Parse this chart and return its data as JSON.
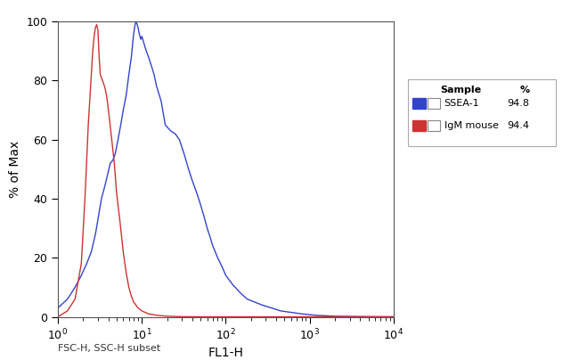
{
  "title": "",
  "xlabel": "FL1-H",
  "ylabel": "% of Max",
  "xlim_log": [
    1,
    10000
  ],
  "ylim": [
    0,
    100
  ],
  "footnote": "FSC-H, SSC-H subset",
  "legend_title": "Sample",
  "legend_entries": [
    {
      "label": "SSEA-1",
      "pct": "94.8",
      "color": "#3344cc"
    },
    {
      "label": "IgM mouse",
      "pct": "94.4",
      "color": "#cc3333"
    }
  ],
  "blue_curve": {
    "color": "#3344cc",
    "peaks": [
      [
        1.0,
        3
      ],
      [
        1.3,
        6
      ],
      [
        1.6,
        10
      ],
      [
        1.9,
        14
      ],
      [
        2.2,
        18
      ],
      [
        2.5,
        22
      ],
      [
        2.8,
        28
      ],
      [
        3.0,
        33
      ],
      [
        3.3,
        40
      ],
      [
        3.6,
        44
      ],
      [
        3.9,
        48
      ],
      [
        4.2,
        52
      ],
      [
        4.5,
        53
      ],
      [
        4.8,
        55
      ],
      [
        5.2,
        60
      ],
      [
        5.6,
        65
      ],
      [
        6.0,
        70
      ],
      [
        6.5,
        75
      ],
      [
        7.0,
        82
      ],
      [
        7.5,
        88
      ],
      [
        7.8,
        93
      ],
      [
        8.0,
        96
      ],
      [
        8.3,
        99
      ],
      [
        8.5,
        100
      ],
      [
        8.8,
        99
      ],
      [
        9.0,
        98
      ],
      [
        9.3,
        96
      ],
      [
        9.7,
        94
      ],
      [
        10.0,
        95
      ],
      [
        10.5,
        93
      ],
      [
        11.0,
        91
      ],
      [
        12.0,
        88
      ],
      [
        13.0,
        85
      ],
      [
        14.0,
        82
      ],
      [
        15.0,
        78
      ],
      [
        17.0,
        73
      ],
      [
        19.0,
        65
      ],
      [
        22.0,
        63
      ],
      [
        25.0,
        62
      ],
      [
        28.0,
        60
      ],
      [
        32.0,
        55
      ],
      [
        36.0,
        50
      ],
      [
        40.0,
        46
      ],
      [
        45.0,
        42
      ],
      [
        50.0,
        38
      ],
      [
        55.0,
        34
      ],
      [
        60.0,
        30
      ],
      [
        65.0,
        27
      ],
      [
        70.0,
        24
      ],
      [
        80.0,
        20
      ],
      [
        90.0,
        17
      ],
      [
        100.0,
        14
      ],
      [
        120.0,
        11
      ],
      [
        150.0,
        8
      ],
      [
        180.0,
        6
      ],
      [
        220.0,
        5
      ],
      [
        270.0,
        4
      ],
      [
        350.0,
        3
      ],
      [
        450.0,
        2
      ],
      [
        600.0,
        1.5
      ],
      [
        800.0,
        1
      ],
      [
        1200.0,
        0.5
      ],
      [
        2000.0,
        0.2
      ],
      [
        5000.0,
        0.05
      ],
      [
        10000.0,
        0
      ]
    ]
  },
  "red_curve": {
    "color": "#cc3333",
    "peaks": [
      [
        1.0,
        0
      ],
      [
        1.3,
        2
      ],
      [
        1.6,
        6
      ],
      [
        1.9,
        18
      ],
      [
        2.1,
        40
      ],
      [
        2.3,
        65
      ],
      [
        2.5,
        82
      ],
      [
        2.6,
        90
      ],
      [
        2.7,
        95
      ],
      [
        2.8,
        98
      ],
      [
        2.9,
        99
      ],
      [
        3.0,
        97
      ],
      [
        3.1,
        88
      ],
      [
        3.2,
        82
      ],
      [
        3.4,
        80
      ],
      [
        3.6,
        78
      ],
      [
        3.8,
        75
      ],
      [
        4.0,
        70
      ],
      [
        4.3,
        62
      ],
      [
        4.7,
        52
      ],
      [
        5.0,
        42
      ],
      [
        5.5,
        32
      ],
      [
        6.0,
        22
      ],
      [
        6.5,
        15
      ],
      [
        7.0,
        10
      ],
      [
        7.5,
        7
      ],
      [
        8.0,
        5
      ],
      [
        9.0,
        3
      ],
      [
        10.0,
        2
      ],
      [
        12.0,
        1
      ],
      [
        15.0,
        0.5
      ],
      [
        20.0,
        0.2
      ],
      [
        30.0,
        0.05
      ],
      [
        50.0,
        0
      ],
      [
        10000.0,
        0
      ]
    ]
  }
}
